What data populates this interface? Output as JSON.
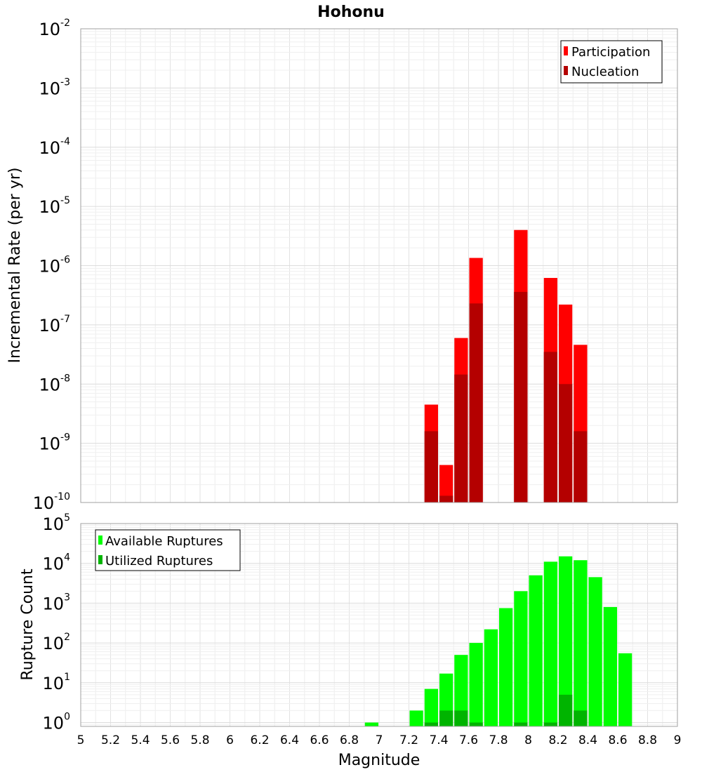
{
  "title": "Hohonu",
  "xlabel": "Magnitude",
  "x_ticks": [
    "5",
    "5.2",
    "5.4",
    "5.6",
    "5.8",
    "6",
    "6.2",
    "6.4",
    "6.6",
    "6.8",
    "7",
    "7.2",
    "7.4",
    "7.6",
    "7.8",
    "8",
    "8.2",
    "8.4",
    "8.6",
    "8.8",
    "9"
  ],
  "chart_data": [
    {
      "type": "bar",
      "panel": "top",
      "title": "Hohonu",
      "xlabel": "",
      "ylabel": "Incremental Rate (per yr)",
      "y_scale": "log",
      "xlim": [
        5,
        9
      ],
      "ylim": [
        1e-10,
        0.01
      ],
      "y_ticks": [
        {
          "base": "10",
          "exp": "-10"
        },
        {
          "base": "10",
          "exp": "-9"
        },
        {
          "base": "10",
          "exp": "-8"
        },
        {
          "base": "10",
          "exp": "-7"
        },
        {
          "base": "10",
          "exp": "-6"
        },
        {
          "base": "10",
          "exp": "-5"
        },
        {
          "base": "10",
          "exp": "-4"
        },
        {
          "base": "10",
          "exp": "-3"
        },
        {
          "base": "10",
          "exp": "-2"
        }
      ],
      "grid": true,
      "legend_position": "top-right",
      "bar_width": 0.1,
      "series": [
        {
          "name": "Participation",
          "color": "#ff0000",
          "x": [
            7.35,
            7.45,
            7.55,
            7.65,
            7.95,
            8.15,
            8.25,
            8.35
          ],
          "values": [
            4.5e-09,
            4.3e-10,
            6e-08,
            1.35e-06,
            4e-06,
            6.2e-07,
            2.2e-07,
            4.6e-08
          ]
        },
        {
          "name": "Nucleation",
          "color": "#b40000",
          "x": [
            7.35,
            7.45,
            7.55,
            7.65,
            7.95,
            8.15,
            8.25,
            8.35
          ],
          "values": [
            1.6e-09,
            1.3e-10,
            1.45e-08,
            2.3e-07,
            3.6e-07,
            3.5e-08,
            1e-08,
            1.6e-09
          ]
        }
      ]
    },
    {
      "type": "bar",
      "panel": "bottom",
      "title": "",
      "xlabel": "Magnitude",
      "ylabel": "Rupture Count",
      "y_scale": "log",
      "xlim": [
        5,
        9
      ],
      "ylim": [
        0.8,
        100000.0
      ],
      "y_ticks": [
        {
          "base": "10",
          "exp": "0"
        },
        {
          "base": "10",
          "exp": "1"
        },
        {
          "base": "10",
          "exp": "2"
        },
        {
          "base": "10",
          "exp": "3"
        },
        {
          "base": "10",
          "exp": "4"
        },
        {
          "base": "10",
          "exp": "5"
        }
      ],
      "grid": true,
      "legend_position": "top-left",
      "bar_width": 0.1,
      "series": [
        {
          "name": "Available Ruptures",
          "color": "#00ff00",
          "x": [
            6.95,
            7.25,
            7.35,
            7.45,
            7.55,
            7.65,
            7.75,
            7.85,
            7.95,
            8.05,
            8.15,
            8.25,
            8.35,
            8.45,
            8.55,
            8.65
          ],
          "values": [
            1,
            2,
            7,
            17,
            50,
            100,
            220,
            750,
            2000,
            5000,
            11000,
            15000,
            12000,
            4500,
            800,
            55
          ]
        },
        {
          "name": "Utilized Ruptures",
          "color": "#00b400",
          "x": [
            7.35,
            7.45,
            7.55,
            7.65,
            7.95,
            8.15,
            8.25,
            8.35
          ],
          "values": [
            1,
            2,
            2,
            1,
            1,
            1,
            5,
            2
          ]
        }
      ]
    }
  ]
}
